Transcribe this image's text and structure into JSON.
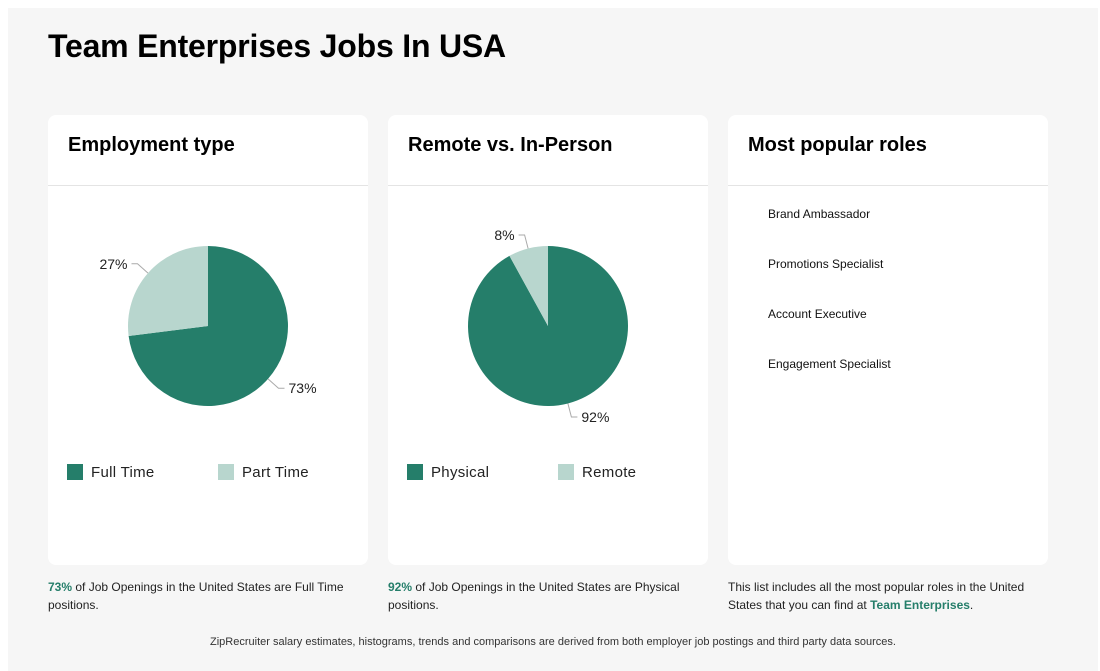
{
  "page": {
    "title": "Team Enterprises Jobs In USA",
    "footnote": "ZipRecruiter salary estimates, histograms, trends and comparisons are derived from both employer job postings and third party data sources."
  },
  "colors": {
    "primary": "#257e6a",
    "secondary": "#b8d6ce"
  },
  "cards": {
    "employment": {
      "title": "Employment type",
      "caption_value": "73%",
      "caption_text": " of Job Openings in the United States are Full Time positions."
    },
    "remote": {
      "title": "Remote vs. In-Person",
      "caption_value": "92%",
      "caption_text": " of Job Openings in the United States are Physical positions."
    },
    "roles": {
      "title": "Most popular roles",
      "items": [
        "Brand Ambassador",
        "Promotions Specialist",
        "Account Executive",
        "Engagement Specialist"
      ],
      "caption_text": "This list includes all the most popular roles in the United States that you can find at ",
      "caption_link": "Team Enterprises",
      "caption_end": "."
    }
  },
  "chart_data": [
    {
      "type": "pie",
      "title": "Employment type",
      "categories": [
        "Full Time",
        "Part Time"
      ],
      "values": [
        73,
        27
      ],
      "labels": [
        "73%",
        "27%"
      ],
      "colors": [
        "#257e6a",
        "#b8d6ce"
      ],
      "legend": "bottom"
    },
    {
      "type": "pie",
      "title": "Remote vs. In-Person",
      "categories": [
        "Physical",
        "Remote"
      ],
      "values": [
        92,
        8
      ],
      "labels": [
        "92%",
        "8%"
      ],
      "colors": [
        "#257e6a",
        "#b8d6ce"
      ],
      "legend": "bottom"
    }
  ]
}
